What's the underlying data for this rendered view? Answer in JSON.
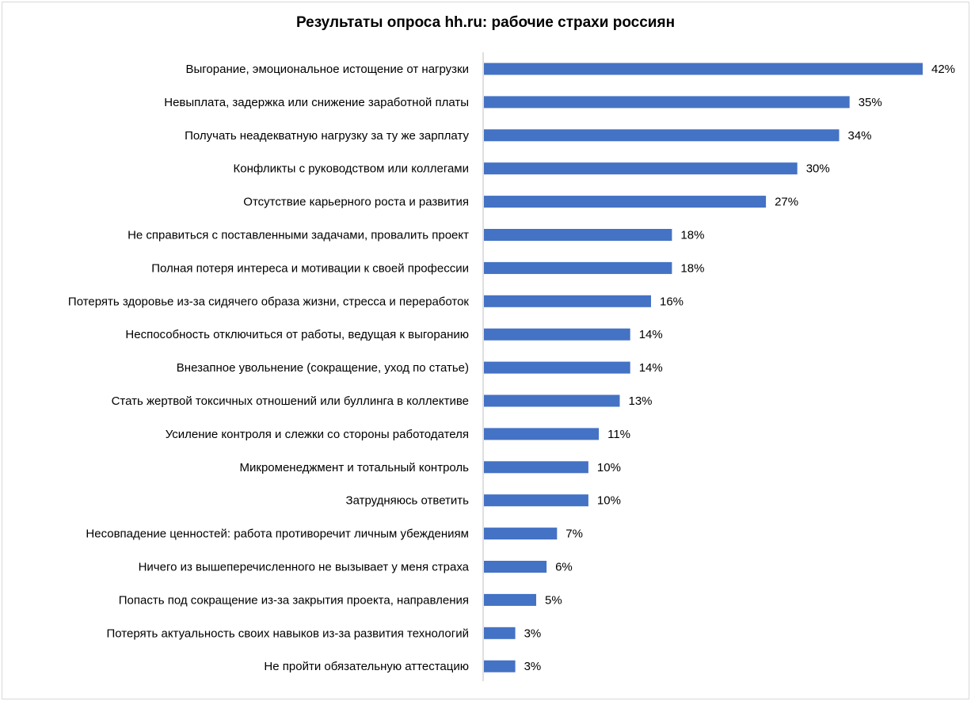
{
  "chart_data": {
    "type": "bar",
    "orientation": "horizontal",
    "title": "Результаты  опроса hh.ru: рабочие страхи россиян",
    "xlabel": "",
    "ylabel": "",
    "xlim": [
      0,
      42
    ],
    "grid": false,
    "legend": "none",
    "bar_color": "#4472c4",
    "categories": [
      "Выгорание, эмоциональное истощение от нагрузки",
      "Невыплата, задержка или снижение заработной платы",
      "Получать неадекватную нагрузку за ту же зарплату",
      "Конфликты с руководством или коллегами",
      "Отсутствие карьерного роста и развития",
      "Не справиться с поставленными задачами, провалить проект",
      "Полная потеря интереса  и мотивации к своей профессии",
      "Потерять здоровье из-за сидячего образа жизни, стресса и переработок",
      "Неспособность отключиться от работы, ведущая к выгоранию",
      "Внезапное увольнение (сокращение, уход по статье)",
      "Стать жертвой токсичных отношений или буллинга в коллективе",
      "Усиление контроля и слежки со стороны работодателя",
      "Микроменеджмент и тотальный контроль",
      "Затрудняюсь ответить",
      "Несовпадение ценностей: работа противоречит личным убеждениям",
      "Ничего из вышеперечисленного не вызывает у меня страха",
      "Попасть под сокращение из-за закрытия проекта, направления",
      "Потерять актуальность своих навыков из-за развития технологий",
      "Не пройти обязательную аттестацию"
    ],
    "values": [
      42,
      35,
      34,
      30,
      27,
      18,
      18,
      16,
      14,
      14,
      13,
      11,
      10,
      10,
      7,
      6,
      5,
      3,
      3
    ],
    "value_labels": [
      "42%",
      "35%",
      "34%",
      "30%",
      "27%",
      "18%",
      "18%",
      "16%",
      "14%",
      "14%",
      "13%",
      "11%",
      "10%",
      "10%",
      "7%",
      "6%",
      "5%",
      "3%",
      "3%"
    ]
  }
}
